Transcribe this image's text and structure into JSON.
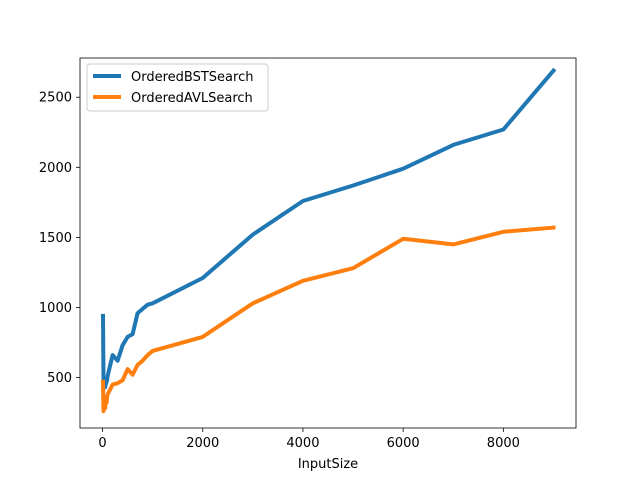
{
  "chart_data": {
    "type": "line",
    "title": "",
    "xlabel": "InputSize",
    "ylabel": "",
    "xlim": [
      -450,
      9450
    ],
    "ylim": [
      140,
      2780
    ],
    "x_ticks": [
      0,
      2000,
      4000,
      6000,
      8000
    ],
    "y_ticks": [
      500,
      1000,
      1500,
      2000,
      2500
    ],
    "grid": false,
    "legend_position": "upper left",
    "series": [
      {
        "name": "OrderedBSTSearch",
        "color": "#1f77b4",
        "x": [
          10,
          20,
          30,
          40,
          50,
          60,
          70,
          80,
          90,
          100,
          200,
          300,
          400,
          500,
          600,
          700,
          800,
          900,
          1000,
          2000,
          3000,
          4000,
          5000,
          6000,
          7000,
          8000,
          9000
        ],
        "y": [
          940,
          490,
          470,
          440,
          430,
          450,
          460,
          470,
          480,
          510,
          660,
          620,
          730,
          790,
          810,
          960,
          990,
          1020,
          1030,
          1210,
          1520,
          1760,
          1870,
          1990,
          2160,
          2270,
          2690
        ]
      },
      {
        "name": "OrderedAVLSearch",
        "color": "#ff7f0e",
        "x": [
          10,
          20,
          30,
          40,
          50,
          60,
          70,
          80,
          90,
          100,
          200,
          300,
          400,
          500,
          600,
          700,
          800,
          900,
          1000,
          2000,
          3000,
          4000,
          5000,
          6000,
          7000,
          8000,
          9000
        ],
        "y": [
          470,
          260,
          290,
          300,
          280,
          310,
          330,
          320,
          360,
          380,
          450,
          460,
          480,
          560,
          520,
          590,
          620,
          660,
          690,
          790,
          1030,
          1190,
          1280,
          1490,
          1450,
          1540,
          1570
        ]
      }
    ]
  }
}
